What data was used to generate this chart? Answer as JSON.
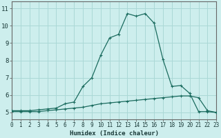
{
  "xlabel": "Humidex (Indice chaleur)",
  "background_color": "#cdeeed",
  "grid_color": "#aad8d6",
  "line_color": "#1a6b5e",
  "x_main": [
    0,
    1,
    2,
    3,
    4,
    5,
    6,
    7,
    8,
    9,
    10,
    11,
    12,
    13,
    14,
    15,
    16,
    17,
    18,
    19,
    20,
    21,
    22,
    23
  ],
  "y_main": [
    5.1,
    5.1,
    5.1,
    5.15,
    5.2,
    5.25,
    5.5,
    5.6,
    6.5,
    7.0,
    8.3,
    9.3,
    9.5,
    10.7,
    10.55,
    10.7,
    10.15,
    8.05,
    6.5,
    6.55,
    6.1,
    5.05,
    5.05,
    5.0
  ],
  "x_flat": [
    0,
    1,
    2,
    3,
    4,
    5,
    6,
    7,
    8,
    9,
    10,
    11,
    12,
    13,
    14,
    15,
    16,
    17,
    18,
    19,
    20,
    21,
    22,
    23
  ],
  "y_flat": [
    5.05,
    5.05,
    5.05,
    5.05,
    5.1,
    5.15,
    5.2,
    5.25,
    5.3,
    5.4,
    5.5,
    5.55,
    5.6,
    5.65,
    5.7,
    5.75,
    5.8,
    5.85,
    5.9,
    5.95,
    5.95,
    5.85,
    5.1,
    5.0
  ],
  "xlim": [
    0,
    23
  ],
  "ylim": [
    4.6,
    11.4
  ],
  "yticks": [
    5,
    6,
    7,
    8,
    9,
    10,
    11
  ],
  "xticks": [
    0,
    1,
    2,
    3,
    4,
    5,
    6,
    7,
    8,
    9,
    10,
    11,
    12,
    13,
    14,
    15,
    16,
    17,
    18,
    19,
    20,
    21,
    22,
    23
  ],
  "xlabel_fontsize": 6.5,
  "tick_fontsize": 5.5,
  "ytick_fontsize": 6.5
}
